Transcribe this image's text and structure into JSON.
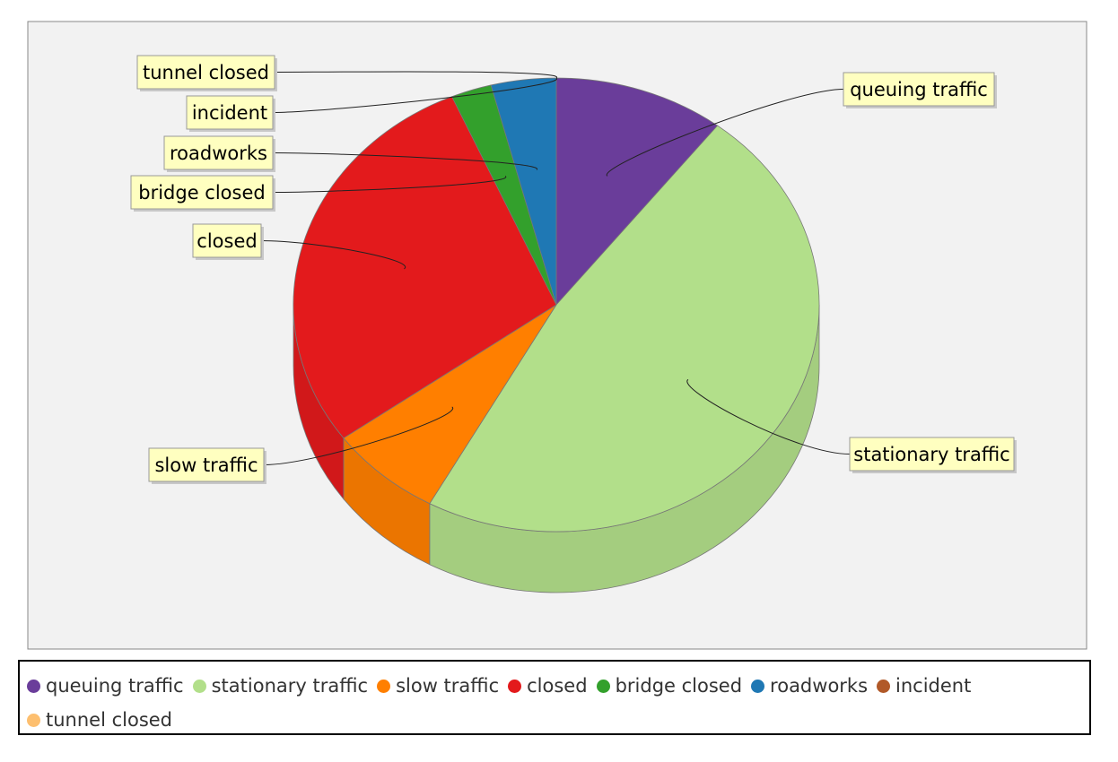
{
  "chart_data": {
    "type": "pie",
    "style": "3d",
    "title": "",
    "unit": "percent",
    "legend_position": "bottom",
    "slices": [
      {
        "label": "queuing traffic",
        "value": 10.5,
        "color": "#6a3d9a"
      },
      {
        "label": "stationary traffic",
        "value": 47.5,
        "color": "#b2df8a"
      },
      {
        "label": "slow traffic",
        "value": 7.0,
        "color": "#ff7f00"
      },
      {
        "label": "closed",
        "value": 28.5,
        "color": "#e31a1c"
      },
      {
        "label": "bridge closed",
        "value": 2.5,
        "color": "#33a02c"
      },
      {
        "label": "roadworks",
        "value": 4.0,
        "color": "#1f78b4"
      },
      {
        "label": "incident",
        "value": 0.0,
        "color": "#b15928"
      },
      {
        "label": "tunnel closed",
        "value": 0.0,
        "color": "#fdbf6f"
      }
    ]
  }
}
